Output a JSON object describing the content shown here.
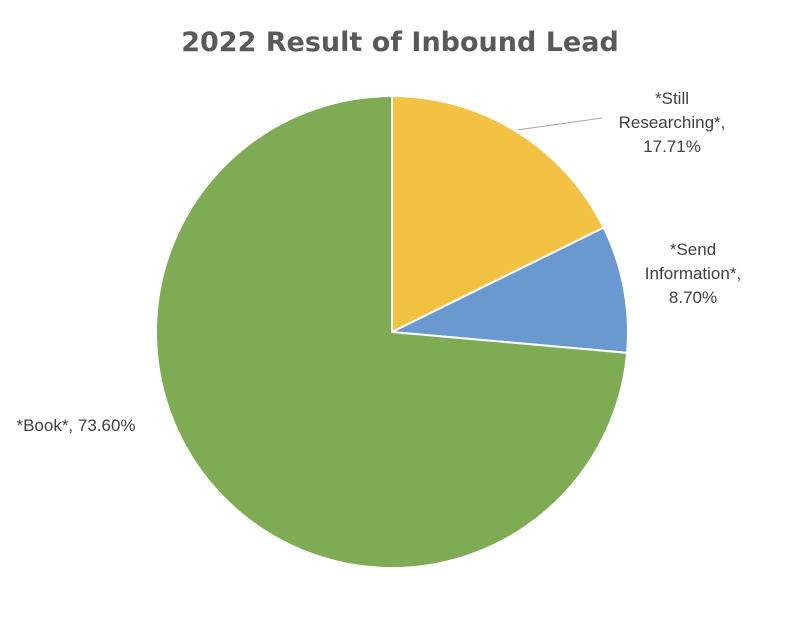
{
  "chart_data": {
    "type": "pie",
    "title": "2022 Result of Inbound Lead",
    "start_angle_deg": 0,
    "direction": "clockwise",
    "slices": [
      {
        "name": "*Still Researching*",
        "value": 17.71,
        "label_lines": [
          "*Still",
          "Researching*,",
          "17.71%"
        ],
        "color": "#F4C242"
      },
      {
        "name": "*Send Information*",
        "value": 8.7,
        "label_lines": [
          "*Send",
          "Information*,",
          "8.70%"
        ],
        "color": "#6A99D0"
      },
      {
        "name": "*Book*",
        "value": 73.6,
        "label_lines": [
          "*Book*, 73.60%"
        ],
        "color": "#7FAB55"
      }
    ]
  }
}
